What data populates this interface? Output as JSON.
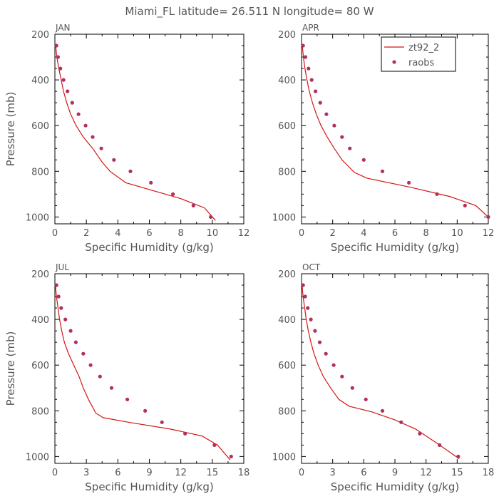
{
  "title": "Miami_FL   latitude= 26.511 N longitude= 80 W",
  "colors": {
    "model": "#d41515",
    "obs": "#b03060",
    "axis": "#000000",
    "text": "#555555"
  },
  "legend": {
    "model_label": "zt92_2",
    "obs_label": "raobs",
    "placement": "upper-right of APR panel"
  },
  "chart_data": [
    {
      "type": "line",
      "panel_label": "JAN",
      "xlabel": "Specific Humidity (g/kg)",
      "ylabel": "Pressure (mb)",
      "xlim": [
        0,
        12
      ],
      "xticks": [
        0,
        2,
        4,
        6,
        8,
        10,
        12
      ],
      "ylim": [
        200,
        1030
      ],
      "yticks": [
        200,
        400,
        600,
        800,
        1000
      ],
      "y_inverted": true,
      "series": [
        {
          "name": "zt92_2",
          "kind": "line",
          "points": [
            [
              0.05,
              250
            ],
            [
              0.12,
              300
            ],
            [
              0.25,
              350
            ],
            [
              0.4,
              400
            ],
            [
              0.55,
              450
            ],
            [
              0.75,
              500
            ],
            [
              1.0,
              550
            ],
            [
              1.35,
              600
            ],
            [
              1.8,
              650
            ],
            [
              2.4,
              700
            ],
            [
              3.0,
              760
            ],
            [
              3.5,
              800
            ],
            [
              4.5,
              850
            ],
            [
              6.5,
              890
            ],
            [
              8.0,
              920
            ],
            [
              9.5,
              960
            ],
            [
              10.2,
              1015
            ]
          ]
        },
        {
          "name": "raobs",
          "kind": "points",
          "points": [
            [
              0.1,
              250
            ],
            [
              0.2,
              300
            ],
            [
              0.35,
              350
            ],
            [
              0.55,
              400
            ],
            [
              0.8,
              450
            ],
            [
              1.1,
              500
            ],
            [
              1.5,
              550
            ],
            [
              1.95,
              600
            ],
            [
              2.4,
              650
            ],
            [
              2.95,
              700
            ],
            [
              3.75,
              750
            ],
            [
              4.8,
              800
            ],
            [
              6.1,
              850
            ],
            [
              7.5,
              900
            ],
            [
              8.8,
              950
            ],
            [
              9.9,
              1000
            ]
          ]
        }
      ]
    },
    {
      "type": "line",
      "panel_label": "APR",
      "xlabel": "Specific Humidity (g/kg)",
      "ylabel": "",
      "xlim": [
        0,
        12
      ],
      "xticks": [
        0,
        2,
        4,
        6,
        8,
        10,
        12
      ],
      "ylim": [
        200,
        1030
      ],
      "yticks": [
        200,
        400,
        600,
        800,
        1000
      ],
      "y_inverted": true,
      "series": [
        {
          "name": "zt92_2",
          "kind": "line",
          "points": [
            [
              0.05,
              250
            ],
            [
              0.12,
              300
            ],
            [
              0.22,
              350
            ],
            [
              0.35,
              400
            ],
            [
              0.5,
              450
            ],
            [
              0.7,
              500
            ],
            [
              0.95,
              550
            ],
            [
              1.25,
              600
            ],
            [
              1.65,
              650
            ],
            [
              2.1,
              700
            ],
            [
              2.6,
              750
            ],
            [
              3.4,
              805
            ],
            [
              4.2,
              830
            ],
            [
              7.0,
              870
            ],
            [
              9.5,
              910
            ],
            [
              11.2,
              950
            ],
            [
              12.0,
              1000
            ]
          ]
        },
        {
          "name": "raobs",
          "kind": "points",
          "points": [
            [
              0.1,
              250
            ],
            [
              0.25,
              300
            ],
            [
              0.45,
              350
            ],
            [
              0.65,
              400
            ],
            [
              0.9,
              450
            ],
            [
              1.2,
              500
            ],
            [
              1.6,
              550
            ],
            [
              2.1,
              600
            ],
            [
              2.6,
              650
            ],
            [
              3.1,
              700
            ],
            [
              4.0,
              750
            ],
            [
              5.2,
              800
            ],
            [
              6.9,
              850
            ],
            [
              8.7,
              900
            ],
            [
              10.5,
              950
            ],
            [
              12.0,
              1000
            ]
          ]
        }
      ]
    },
    {
      "type": "line",
      "panel_label": "JUL",
      "xlabel": "Specific Humidity (g/kg)",
      "ylabel": "Pressure (mb)",
      "xlim": [
        0,
        18
      ],
      "xticks": [
        0,
        3,
        6,
        9,
        12,
        15,
        18
      ],
      "ylim": [
        200,
        1030
      ],
      "yticks": [
        200,
        400,
        600,
        800,
        1000
      ],
      "y_inverted": true,
      "series": [
        {
          "name": "zt92_2",
          "kind": "line",
          "points": [
            [
              0.05,
              250
            ],
            [
              0.15,
              300
            ],
            [
              0.3,
              350
            ],
            [
              0.45,
              400
            ],
            [
              0.65,
              450
            ],
            [
              0.9,
              500
            ],
            [
              1.3,
              550
            ],
            [
              1.8,
              600
            ],
            [
              2.3,
              650
            ],
            [
              2.7,
              700
            ],
            [
              3.2,
              750
            ],
            [
              3.9,
              810
            ],
            [
              4.6,
              830
            ],
            [
              7.0,
              850
            ],
            [
              11.0,
              880
            ],
            [
              14.0,
              910
            ],
            [
              15.5,
              950
            ],
            [
              16.7,
              1015
            ]
          ]
        },
        {
          "name": "raobs",
          "kind": "points",
          "points": [
            [
              0.15,
              250
            ],
            [
              0.35,
              300
            ],
            [
              0.6,
              350
            ],
            [
              1.0,
              400
            ],
            [
              1.5,
              450
            ],
            [
              2.0,
              500
            ],
            [
              2.7,
              550
            ],
            [
              3.4,
              600
            ],
            [
              4.3,
              650
            ],
            [
              5.4,
              700
            ],
            [
              6.9,
              750
            ],
            [
              8.6,
              800
            ],
            [
              10.2,
              850
            ],
            [
              12.4,
              900
            ],
            [
              15.2,
              950
            ],
            [
              16.8,
              1000
            ]
          ]
        }
      ]
    },
    {
      "type": "line",
      "panel_label": "OCT",
      "xlabel": "Specific Humidity (g/kg)",
      "ylabel": "",
      "xlim": [
        0,
        18
      ],
      "xticks": [
        0,
        3,
        6,
        9,
        12,
        15,
        18
      ],
      "ylim": [
        200,
        1030
      ],
      "yticks": [
        200,
        400,
        600,
        800,
        1000
      ],
      "y_inverted": true,
      "series": [
        {
          "name": "zt92_2",
          "kind": "line",
          "points": [
            [
              0.05,
              250
            ],
            [
              0.15,
              300
            ],
            [
              0.3,
              350
            ],
            [
              0.45,
              400
            ],
            [
              0.65,
              450
            ],
            [
              0.9,
              500
            ],
            [
              1.2,
              550
            ],
            [
              1.6,
              600
            ],
            [
              2.1,
              650
            ],
            [
              2.8,
              700
            ],
            [
              3.6,
              750
            ],
            [
              4.6,
              780
            ],
            [
              6.8,
              805
            ],
            [
              9.0,
              840
            ],
            [
              11.0,
              880
            ],
            [
              13.0,
              940
            ],
            [
              15.2,
              1010
            ]
          ]
        },
        {
          "name": "raobs",
          "kind": "points",
          "points": [
            [
              0.15,
              250
            ],
            [
              0.35,
              300
            ],
            [
              0.6,
              350
            ],
            [
              0.9,
              400
            ],
            [
              1.3,
              450
            ],
            [
              1.75,
              500
            ],
            [
              2.35,
              550
            ],
            [
              3.1,
              600
            ],
            [
              3.9,
              650
            ],
            [
              4.9,
              700
            ],
            [
              6.2,
              750
            ],
            [
              7.8,
              800
            ],
            [
              9.6,
              850
            ],
            [
              11.4,
              900
            ],
            [
              13.3,
              950
            ],
            [
              15.1,
              1000
            ]
          ]
        }
      ]
    }
  ]
}
